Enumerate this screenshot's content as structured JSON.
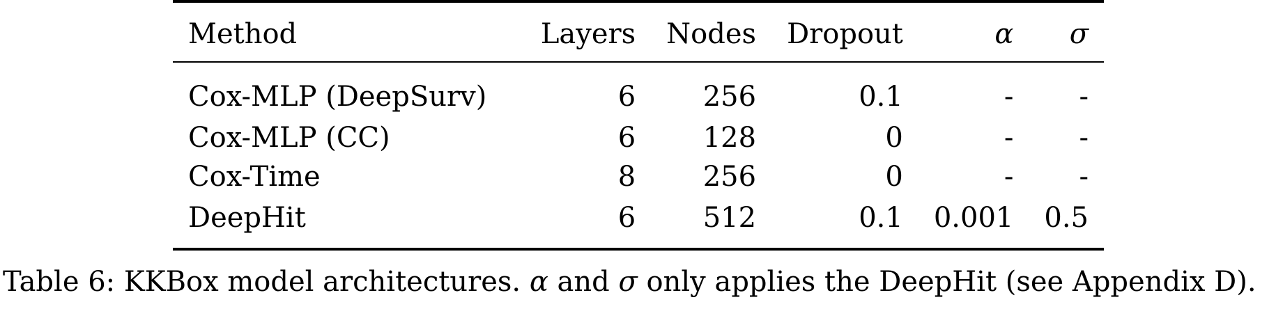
{
  "table": {
    "headers": {
      "method": "Method",
      "layers": "Layers",
      "nodes": "Nodes",
      "dropout": "Dropout",
      "alpha": "α",
      "sigma": "σ"
    },
    "rows": [
      {
        "method": "Cox-MLP (DeepSurv)",
        "layers": "6",
        "nodes": "256",
        "dropout": "0.1",
        "alpha": "-",
        "sigma": "-"
      },
      {
        "method": "Cox-MLP (CC)",
        "layers": "6",
        "nodes": "128",
        "dropout": "0",
        "alpha": "-",
        "sigma": "-"
      },
      {
        "method": "Cox-Time",
        "layers": "8",
        "nodes": "256",
        "dropout": "0",
        "alpha": "-",
        "sigma": "-"
      },
      {
        "method": "DeepHit",
        "layers": "6",
        "nodes": "512",
        "dropout": "0.1",
        "alpha": "0.001",
        "sigma": "0.5"
      }
    ]
  },
  "caption": {
    "prefix": "Table 6:  KKBox model architectures. ",
    "alpha": "α",
    "middle": " and ",
    "sigma": "σ",
    "suffix": " only applies the DeepHit (see Appendix D)."
  }
}
